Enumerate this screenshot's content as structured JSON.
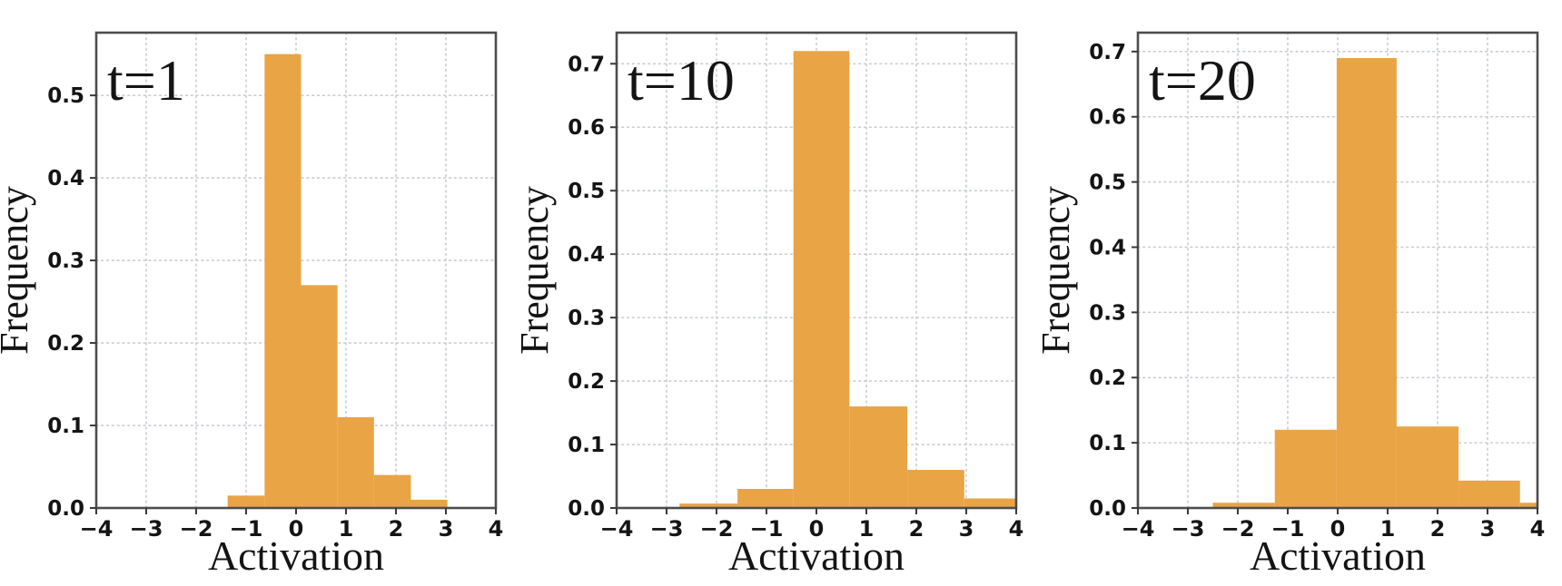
{
  "figure": {
    "background": "#ffffff",
    "description": "Three side-by-side histograms of activation values at training steps t=1, t=10, t=20"
  },
  "style": {
    "bar_color": "#E9A446",
    "grid_color": "#C9CDD4",
    "spine_color": "#4D4D4D",
    "tick_color": "#3A3A3A",
    "text_color": "#141414"
  },
  "chart_data": [
    {
      "id": "t1",
      "type": "bar",
      "subtype": "histogram",
      "title": "t=1",
      "xlabel": "Activation",
      "ylabel": "Frequency",
      "xlim": [
        -4,
        4
      ],
      "ylim": [
        0,
        0.576
      ],
      "xticks": [
        -4,
        -3,
        -2,
        -1,
        0,
        1,
        2,
        3,
        4
      ],
      "yticks": [
        0.0,
        0.1,
        0.2,
        0.3,
        0.4,
        0.5
      ],
      "grid": true,
      "legend_position": "none",
      "bin_edges": [
        -1.37,
        -0.63,
        0.1,
        0.83,
        1.56,
        2.3,
        3.03
      ],
      "frequencies": [
        0.015,
        0.55,
        0.27,
        0.11,
        0.04,
        0.01
      ]
    },
    {
      "id": "t10",
      "type": "bar",
      "subtype": "histogram",
      "title": "t=10",
      "xlabel": "Activation",
      "ylabel": "Frequency",
      "xlim": [
        -4,
        4
      ],
      "ylim": [
        0,
        0.749
      ],
      "xticks": [
        -4,
        -3,
        -2,
        -1,
        0,
        1,
        2,
        3,
        4
      ],
      "yticks": [
        0.0,
        0.1,
        0.2,
        0.3,
        0.4,
        0.5,
        0.6,
        0.7
      ],
      "grid": true,
      "legend_position": "none",
      "bin_edges": [
        -2.74,
        -1.58,
        -0.46,
        0.66,
        1.82,
        2.96,
        4.0
      ],
      "frequencies": [
        0.007,
        0.03,
        0.72,
        0.16,
        0.06,
        0.015
      ]
    },
    {
      "id": "t20",
      "type": "bar",
      "subtype": "histogram",
      "title": "t=20",
      "xlabel": "Activation",
      "ylabel": "Frequency",
      "xlim": [
        -4,
        4
      ],
      "ylim": [
        0,
        0.729
      ],
      "xticks": [
        -4,
        -3,
        -2,
        -1,
        0,
        1,
        2,
        3,
        4
      ],
      "yticks": [
        0.0,
        0.1,
        0.2,
        0.3,
        0.4,
        0.5,
        0.6,
        0.7
      ],
      "grid": true,
      "legend_position": "none",
      "bin_edges": [
        -2.5,
        -1.26,
        -0.02,
        1.18,
        2.42,
        3.65,
        4.0
      ],
      "frequencies": [
        0.008,
        0.12,
        0.69,
        0.125,
        0.042,
        0.008
      ]
    }
  ]
}
